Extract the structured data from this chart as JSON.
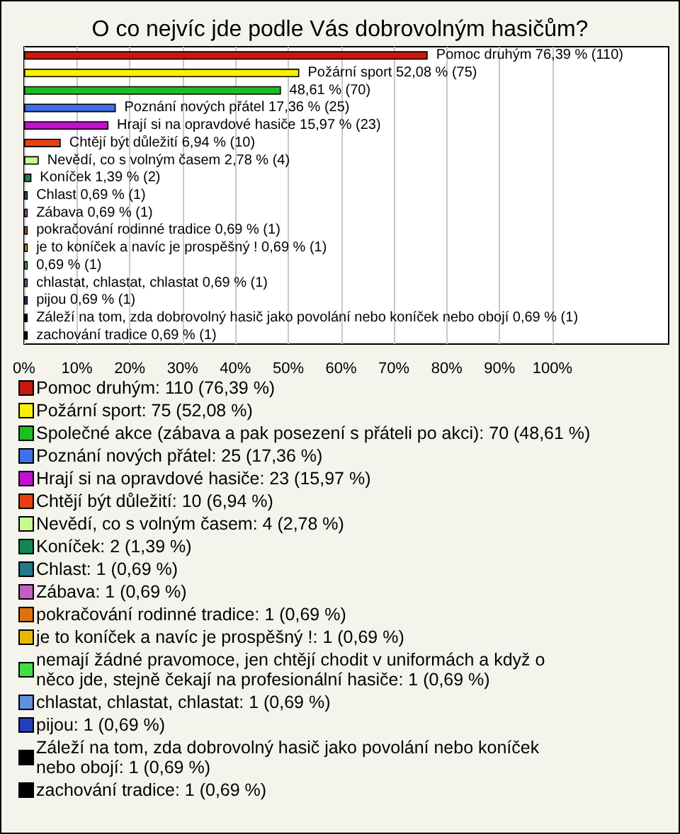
{
  "chart_data": {
    "type": "bar",
    "orientation": "horizontal",
    "stacked": true,
    "title": "O co nejvíc jde podle Vás dobrovolným hasičům?",
    "categories": [
      null,
      null,
      null,
      null,
      null,
      null,
      null,
      null,
      null,
      null,
      null,
      null,
      null,
      null,
      null,
      null,
      null
    ],
    "xlim": [
      0,
      122
    ],
    "xticks": [
      {
        "value": 0,
        "label": "0%"
      },
      {
        "value": 10,
        "label": "10%"
      },
      {
        "value": 20,
        "label": "20%"
      },
      {
        "value": 30,
        "label": "30%"
      },
      {
        "value": 40,
        "label": "40%"
      },
      {
        "value": 50,
        "label": "50%"
      },
      {
        "value": 60,
        "label": "60%"
      },
      {
        "value": 70,
        "label": "70%"
      },
      {
        "value": 80,
        "label": "80%"
      },
      {
        "value": 90,
        "label": "90%"
      },
      {
        "value": 100,
        "label": "100%"
      }
    ],
    "grid": "x",
    "legend": "bottom",
    "series": [
      {
        "name": "Pomoc druhým: 110 (76,39 %)",
        "color": "#c8180c",
        "values": [
          76.39,
          null,
          null,
          null,
          null,
          null,
          null,
          null,
          null,
          null,
          null,
          null,
          null,
          null,
          null,
          null,
          null
        ],
        "value_labels": [
          "Pomoc druhým 76,39 % (110)",
          null,
          null,
          null,
          null,
          null,
          null,
          null,
          null,
          null,
          null,
          null,
          null,
          null,
          null,
          null,
          null
        ]
      },
      {
        "name": "Požární sport: 75 (52,08 %)",
        "color": "#f8f000",
        "values": [
          null,
          52.08,
          null,
          null,
          null,
          null,
          null,
          null,
          null,
          null,
          null,
          null,
          null,
          null,
          null,
          null,
          null
        ],
        "value_labels": [
          null,
          "Požární sport 52,08 % (75)",
          null,
          null,
          null,
          null,
          null,
          null,
          null,
          null,
          null,
          null,
          null,
          null,
          null,
          null,
          null
        ]
      },
      {
        "name": "Společné akce (zábava a pak posezení s přáteli po akci): 70 (48,61 %)",
        "color": "#18c020",
        "values": [
          null,
          null,
          48.61,
          null,
          null,
          null,
          null,
          null,
          null,
          null,
          null,
          null,
          null,
          null,
          null,
          null,
          null
        ],
        "value_labels": [
          null,
          null,
          "48,61 % (70)",
          null,
          null,
          null,
          null,
          null,
          null,
          null,
          null,
          null,
          null,
          null,
          null,
          null,
          null
        ]
      },
      {
        "name": "Poznání nových přátel: 25 (17,36 %)",
        "color": "#4070e8",
        "values": [
          null,
          null,
          null,
          17.36,
          null,
          null,
          null,
          null,
          null,
          null,
          null,
          null,
          null,
          null,
          null,
          null,
          null
        ],
        "value_labels": [
          null,
          null,
          null,
          "Poznání nových přátel 17,36 % (25)",
          null,
          null,
          null,
          null,
          null,
          null,
          null,
          null,
          null,
          null,
          null,
          null,
          null
        ]
      },
      {
        "name": "Hrají si na opravdové hasiče: 23 (15,97 %)",
        "color": "#c010d0",
        "values": [
          null,
          null,
          null,
          null,
          15.97,
          null,
          null,
          null,
          null,
          null,
          null,
          null,
          null,
          null,
          null,
          null,
          null
        ],
        "value_labels": [
          null,
          null,
          null,
          null,
          "Hrají si na opravdové hasiče 15,97 % (23)",
          null,
          null,
          null,
          null,
          null,
          null,
          null,
          null,
          null,
          null,
          null,
          null
        ]
      },
      {
        "name": "Chtějí být důležití: 10 (6,94 %)",
        "color": "#e84010",
        "values": [
          null,
          null,
          null,
          null,
          null,
          6.94,
          null,
          null,
          null,
          null,
          null,
          null,
          null,
          null,
          null,
          null,
          null
        ],
        "value_labels": [
          null,
          null,
          null,
          null,
          null,
          "Chtějí být důležití 6,94 % (10)",
          null,
          null,
          null,
          null,
          null,
          null,
          null,
          null,
          null,
          null,
          null
        ]
      },
      {
        "name": "Nevědí, co s volným časem: 4 (2,78 %)",
        "color": "#c8f890",
        "values": [
          null,
          null,
          null,
          null,
          null,
          null,
          2.78,
          null,
          null,
          null,
          null,
          null,
          null,
          null,
          null,
          null,
          null
        ],
        "value_labels": [
          null,
          null,
          null,
          null,
          null,
          null,
          "Nevědí, co s volným časem 2,78 % (4)",
          null,
          null,
          null,
          null,
          null,
          null,
          null,
          null,
          null,
          null
        ]
      },
      {
        "name": "Koníček: 2 (1,39 %)",
        "color": "#108850",
        "values": [
          null,
          null,
          null,
          null,
          null,
          null,
          null,
          1.39,
          null,
          null,
          null,
          null,
          null,
          null,
          null,
          null,
          null
        ],
        "value_labels": [
          null,
          null,
          null,
          null,
          null,
          null,
          null,
          "Koníček 1,39 % (2)",
          null,
          null,
          null,
          null,
          null,
          null,
          null,
          null,
          null
        ]
      },
      {
        "name": "Chlast: 1 (0,69 %)",
        "color": "#207888",
        "values": [
          null,
          null,
          null,
          null,
          null,
          null,
          null,
          null,
          0.69,
          null,
          null,
          null,
          null,
          null,
          null,
          null,
          null
        ],
        "value_labels": [
          null,
          null,
          null,
          null,
          null,
          null,
          null,
          null,
          "Chlast 0,69 % (1)",
          null,
          null,
          null,
          null,
          null,
          null,
          null,
          null
        ]
      },
      {
        "name": "Zábava: 1 (0,69 %)",
        "color": "#c060c0",
        "values": [
          null,
          null,
          null,
          null,
          null,
          null,
          null,
          null,
          null,
          0.69,
          null,
          null,
          null,
          null,
          null,
          null,
          null
        ],
        "value_labels": [
          null,
          null,
          null,
          null,
          null,
          null,
          null,
          null,
          null,
          "Zábava 0,69 % (1)",
          null,
          null,
          null,
          null,
          null,
          null,
          null
        ]
      },
      {
        "name": "pokračování rodinné tradice: 1 (0,69 %)",
        "color": "#e07010",
        "values": [
          null,
          null,
          null,
          null,
          null,
          null,
          null,
          null,
          null,
          null,
          0.69,
          null,
          null,
          null,
          null,
          null,
          null
        ],
        "value_labels": [
          null,
          null,
          null,
          null,
          null,
          null,
          null,
          null,
          null,
          null,
          "pokračování rodinné tradice 0,69 % (1)",
          null,
          null,
          null,
          null,
          null,
          null
        ]
      },
      {
        "name": "je to koníček a navíc je prospěšný !: 1 (0,69 %)",
        "color": "#e8b800",
        "values": [
          null,
          null,
          null,
          null,
          null,
          null,
          null,
          null,
          null,
          null,
          null,
          0.69,
          null,
          null,
          null,
          null,
          null
        ],
        "value_labels": [
          null,
          null,
          null,
          null,
          null,
          null,
          null,
          null,
          null,
          null,
          null,
          "je to koníček a navíc je prospěšný ! 0,69 % (1)",
          null,
          null,
          null,
          null,
          null
        ]
      },
      {
        "name": "nemají žádné pravomoce, jen chtějí chodit v uniformách a když o něco jde, stejně čekají na profesionální hasiče: 1 (0,69 %)",
        "color": "#40e040",
        "values": [
          null,
          null,
          null,
          null,
          null,
          null,
          null,
          null,
          null,
          null,
          null,
          null,
          0.69,
          null,
          null,
          null,
          null
        ],
        "value_labels": [
          null,
          null,
          null,
          null,
          null,
          null,
          null,
          null,
          null,
          null,
          null,
          null,
          "0,69 % (1)",
          null,
          null,
          null,
          null
        ]
      },
      {
        "name": "chlastat, chlastat, chlastat: 1 (0,69 %)",
        "color": "#6090e0",
        "values": [
          null,
          null,
          null,
          null,
          null,
          null,
          null,
          null,
          null,
          null,
          null,
          null,
          null,
          0.69,
          null,
          null,
          null
        ],
        "value_labels": [
          null,
          null,
          null,
          null,
          null,
          null,
          null,
          null,
          null,
          null,
          null,
          null,
          null,
          "chlastat, chlastat, chlastat 0,69 % (1)",
          null,
          null,
          null
        ]
      },
      {
        "name": "pijou: 1 (0,69 %)",
        "color": "#2040c0",
        "values": [
          null,
          null,
          null,
          null,
          null,
          null,
          null,
          null,
          null,
          null,
          null,
          null,
          null,
          null,
          0.69,
          null,
          null
        ],
        "value_labels": [
          null,
          null,
          null,
          null,
          null,
          null,
          null,
          null,
          null,
          null,
          null,
          null,
          null,
          null,
          "pijou 0,69 % (1)",
          null,
          null
        ]
      },
      {
        "name": "Záleží na tom, zda dobrovolný hasič jako povolání nebo koníček nebo obojí: 1 (0,69 %)",
        "color": "#000000",
        "values": [
          null,
          null,
          null,
          null,
          null,
          null,
          null,
          null,
          null,
          null,
          null,
          null,
          null,
          null,
          null,
          0.69,
          null
        ],
        "value_labels": [
          null,
          null,
          null,
          null,
          null,
          null,
          null,
          null,
          null,
          null,
          null,
          null,
          null,
          null,
          null,
          "Záleží na tom, zda dobrovolný hasič jako povolání nebo koníček nebo obojí 0,69 % (1)",
          null
        ]
      },
      {
        "name": "zachování tradice: 1 (0,69 %)",
        "color": "#000000",
        "values": [
          null,
          null,
          null,
          null,
          null,
          null,
          null,
          null,
          null,
          null,
          null,
          null,
          null,
          null,
          null,
          null,
          0.69
        ],
        "value_labels": [
          null,
          null,
          null,
          null,
          null,
          null,
          null,
          null,
          null,
          null,
          null,
          null,
          null,
          null,
          null,
          null,
          "zachování tradice 0,69 % (1)"
        ]
      }
    ]
  }
}
